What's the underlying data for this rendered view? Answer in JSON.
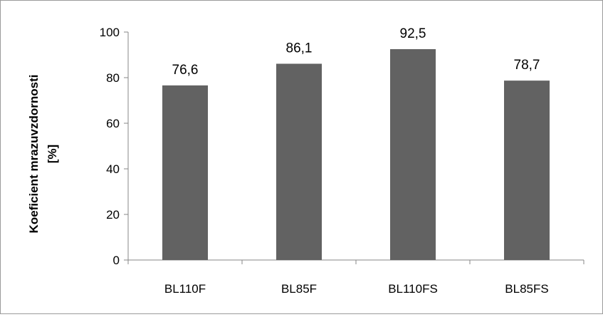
{
  "chart_data": {
    "type": "bar",
    "title": "",
    "xlabel": "",
    "ylabel": "Koeficient mrazuvzdornosti [%]",
    "ylabel_lines": [
      "Koeficient mrazuvzdornosti",
      "[%]"
    ],
    "categories": [
      "BL110F",
      "BL85F",
      "BL110FS",
      "BL85FS"
    ],
    "values": [
      76.6,
      86.1,
      92.5,
      78.7
    ],
    "data_labels": [
      "76,6",
      "86,1",
      "92,5",
      "78,7"
    ],
    "ylim": [
      0,
      100
    ],
    "yticks": [
      0,
      20,
      40,
      60,
      80,
      100
    ],
    "grid": false,
    "legend": "none",
    "bar_color": "#626262"
  }
}
